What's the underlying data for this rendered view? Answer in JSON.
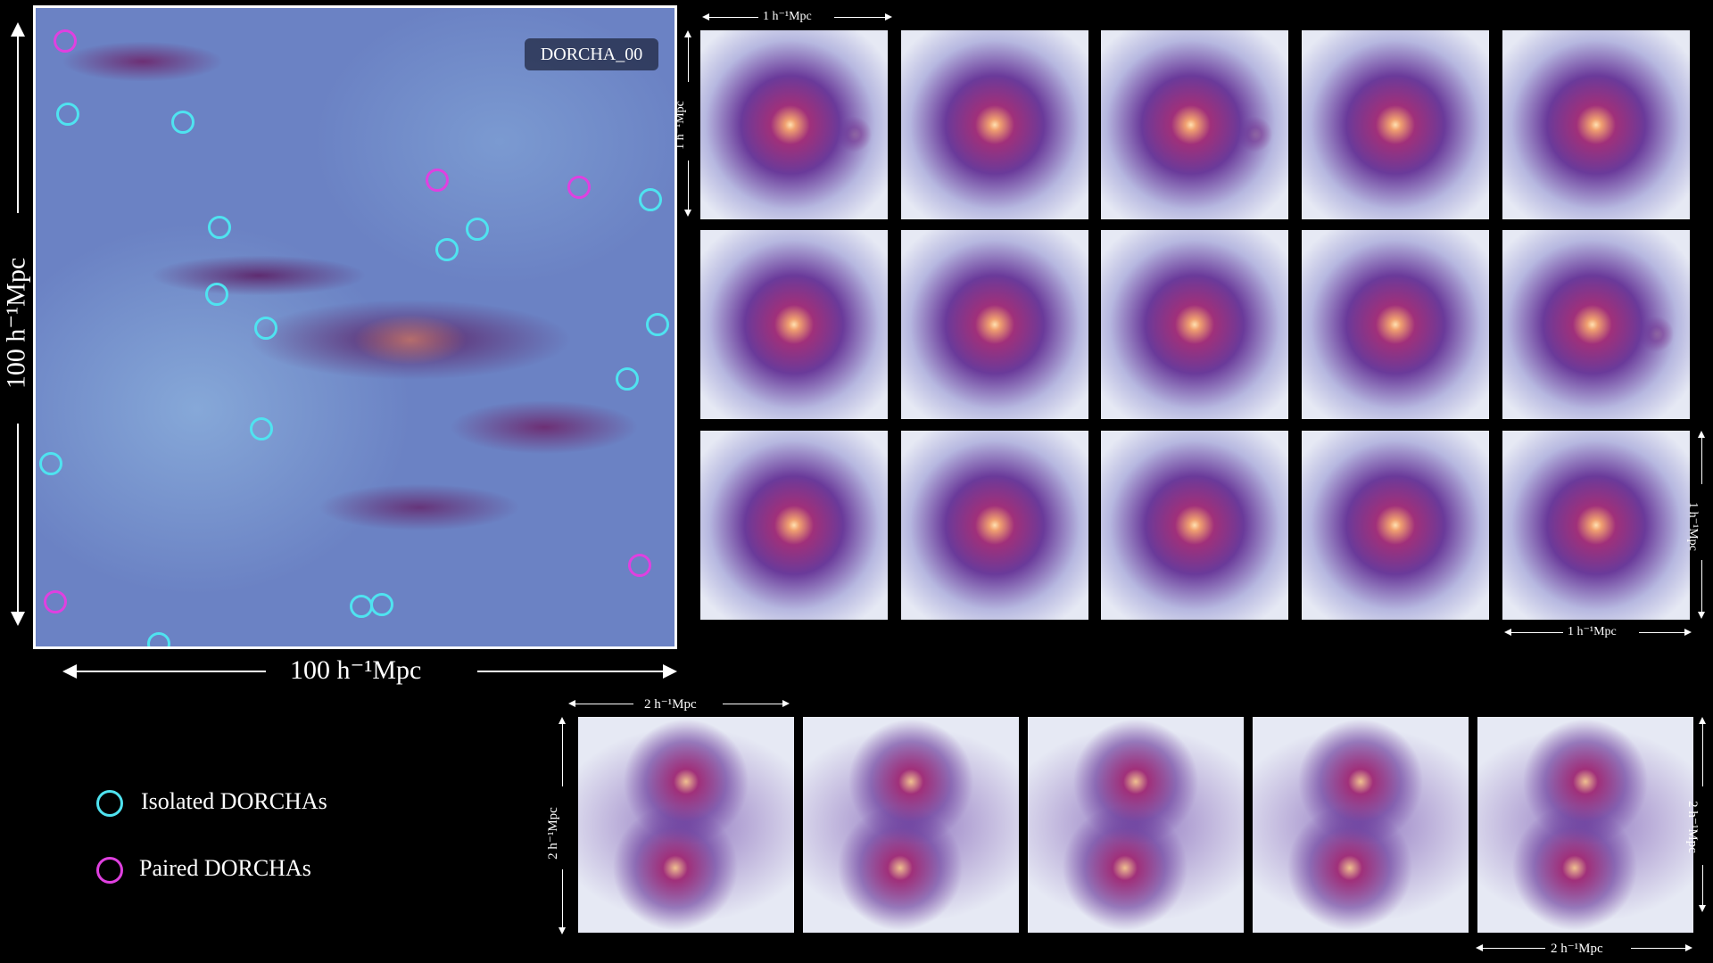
{
  "main_map": {
    "label": "DORCHA_00",
    "scale_x": "100 h⁻¹Mpc",
    "scale_y": "100 h⁻¹Mpc"
  },
  "top_grid": {
    "scale_top": "1 h⁻¹Mpc",
    "scale_left": "1 h⁻¹Mpc",
    "scale_bottom": "1 h⁻¹Mpc",
    "scale_right": "1 h⁻¹Mpc"
  },
  "bottom_row": {
    "scale_top": "2 h⁻¹Mpc",
    "scale_left": "2 h⁻¹Mpc",
    "scale_bottom": "2 h⁻¹Mpc",
    "scale_right": "2 h⁻¹Mpc"
  },
  "legend": {
    "isolated": "Isolated DORCHAs",
    "paired": "Paired DORCHAs"
  },
  "colors": {
    "isolated": "#4fe3f0",
    "paired": "#e040e0"
  }
}
